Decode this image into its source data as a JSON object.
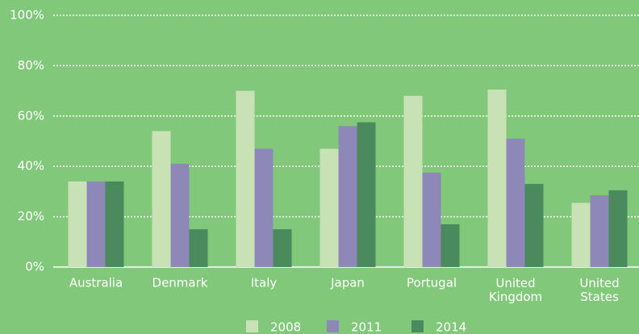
{
  "chart_data": {
    "type": "bar",
    "categories": [
      "Australia",
      "Denmark",
      "Italy",
      "Japan",
      "Portugal",
      "United Kingdom",
      "United States"
    ],
    "series": [
      {
        "name": "2008",
        "color": "#c8e2b6",
        "values": [
          34,
          54,
          70,
          47,
          68,
          70.5,
          25.5
        ]
      },
      {
        "name": "2011",
        "color": "#8e88b9",
        "values": [
          34,
          41,
          47,
          56,
          37.5,
          51,
          28.5
        ]
      },
      {
        "name": "2014",
        "color": "#4a8a5c",
        "values": [
          34,
          15,
          15,
          57.5,
          17,
          33,
          30.5
        ]
      }
    ],
    "ylim": [
      0,
      100
    ],
    "yticks": [
      {
        "value": 0,
        "label": "0%"
      },
      {
        "value": 20,
        "label": "20%"
      },
      {
        "value": 40,
        "label": "40%"
      },
      {
        "value": 60,
        "label": "60%"
      },
      {
        "value": 80,
        "label": "80%"
      },
      {
        "value": 100,
        "label": "100%"
      }
    ],
    "grid": true,
    "legend": "bottom"
  }
}
